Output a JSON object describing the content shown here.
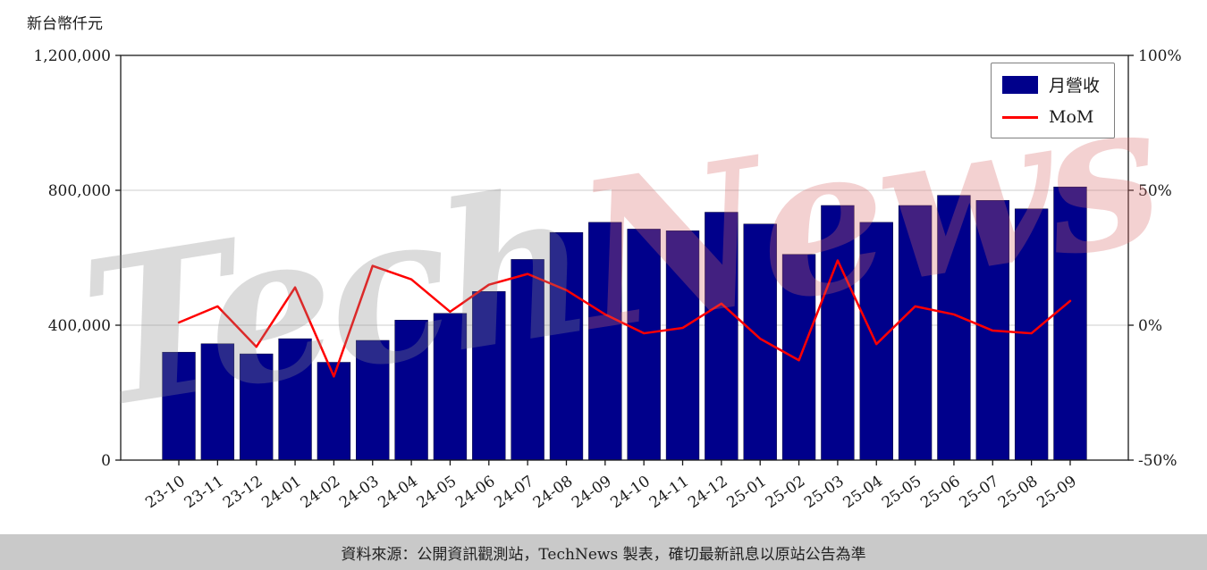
{
  "legend": {
    "bar_label": "月營收",
    "line_label": "MoM"
  },
  "watermark": {
    "part1": "Tech",
    "part2": "News"
  },
  "footer": {
    "text": "資料來源：公開資訊觀測站，TechNews 製表，確切最新訊息以原站公告為準"
  },
  "colors": {
    "bar": "#00008b",
    "line": "#ff0000",
    "grid": "#cccccc",
    "axis": "#1a1a1a",
    "footer_bg": "#c9c9c9",
    "watermark_gray": "#8c8c8c",
    "watermark_pink": "#d96a6a"
  },
  "chart_data": {
    "type": "bar+line",
    "title": "",
    "categories": [
      "23-10",
      "23-11",
      "23-12",
      "24-01",
      "24-02",
      "24-03",
      "24-04",
      "24-05",
      "24-06",
      "24-07",
      "24-08",
      "24-09",
      "24-10",
      "24-11",
      "24-12",
      "25-01",
      "25-02",
      "25-03",
      "25-04",
      "25-05",
      "25-06",
      "25-07",
      "25-08",
      "25-09"
    ],
    "series": [
      {
        "name": "月營收",
        "type": "bar",
        "axis": "left",
        "values": [
          320000,
          345000,
          315000,
          360000,
          290000,
          355000,
          415000,
          435000,
          500000,
          595000,
          675000,
          705000,
          685000,
          680000,
          735000,
          700000,
          610000,
          755000,
          705000,
          755000,
          785000,
          770000,
          745000,
          810000
        ]
      },
      {
        "name": "MoM",
        "type": "line",
        "axis": "right",
        "values": [
          1,
          7,
          -8,
          14,
          -19,
          22,
          17,
          5,
          15,
          19,
          13,
          4,
          -3,
          -1,
          8,
          -5,
          -13,
          24,
          -7,
          7,
          4,
          -2,
          -3,
          9
        ]
      }
    ],
    "left_axis": {
      "label": "新台幣仟元",
      "range": [
        0,
        1200000
      ],
      "ticks": [
        0,
        400000,
        800000,
        1200000
      ]
    },
    "right_axis": {
      "unit": "%",
      "range": [
        -50,
        100
      ],
      "ticks": [
        -50,
        0,
        50,
        100
      ]
    },
    "grid": "horizontal",
    "legend_position": "top-right"
  }
}
